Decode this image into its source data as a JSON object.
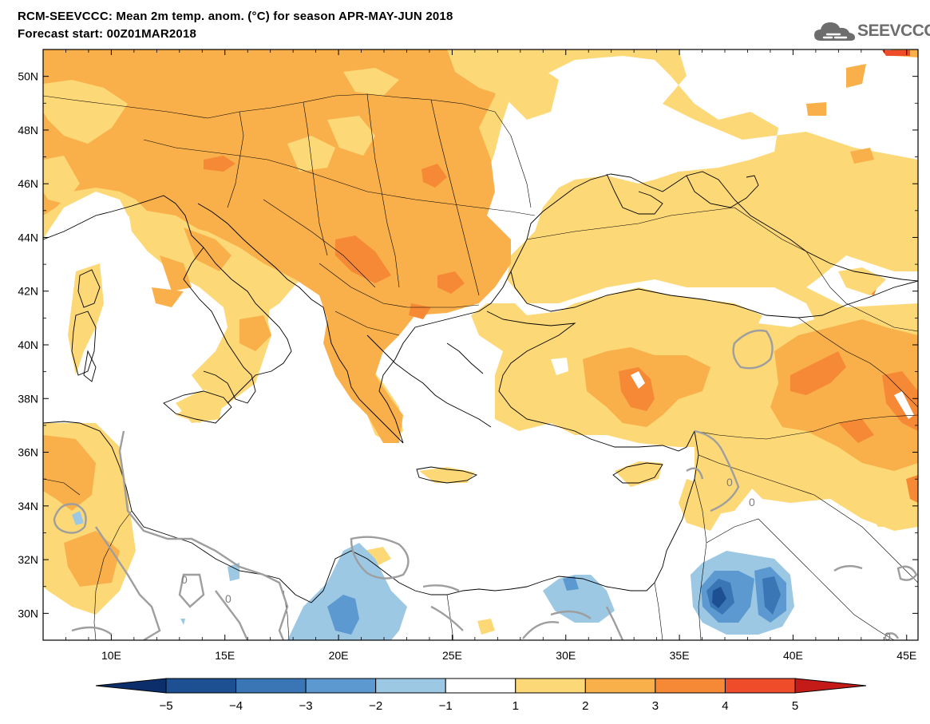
{
  "title": {
    "line1": "RCM-SEEVCCC: Mean 2m temp. anom. (°C) for season APR-MAY-JUN 2018",
    "line2": "Forecast start: 00Z01MAR2018"
  },
  "logo_text": "SEEVCCC",
  "axes": {
    "lat_labels": [
      "50N",
      "48N",
      "46N",
      "44N",
      "42N",
      "40N",
      "38N",
      "36N",
      "34N",
      "32N",
      "30N"
    ],
    "lat_values": [
      50,
      48,
      46,
      44,
      42,
      40,
      38,
      36,
      34,
      32,
      30
    ],
    "lon_labels": [
      "10E",
      "15E",
      "20E",
      "25E",
      "30E",
      "35E",
      "40E",
      "45E"
    ],
    "lon_values": [
      10,
      15,
      20,
      25,
      30,
      35,
      40,
      45
    ],
    "lon_range": [
      7,
      45.5
    ],
    "lat_range": [
      29,
      51
    ]
  },
  "contour_labels": [
    "0",
    "0",
    "0",
    "0",
    "0"
  ],
  "colorbar": {
    "ticks": [
      "−5",
      "−4",
      "−3",
      "−2",
      "−1",
      "1",
      "2",
      "3",
      "4",
      "5"
    ],
    "colors": [
      "#1d4f93",
      "#3a76b6",
      "#5b99d0",
      "#9cc8e4",
      "#ffffff",
      "#fcd877",
      "#f9b04b",
      "#f68936",
      "#ef4d2a"
    ],
    "under_color": "#0c2f6b",
    "over_color": "#c41a18"
  }
}
